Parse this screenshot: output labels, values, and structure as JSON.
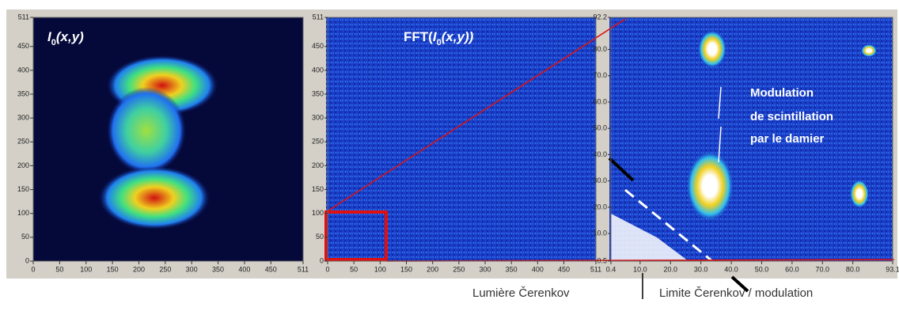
{
  "chart_data": [
    {
      "type": "heatmap",
      "title_parts": [
        {
          "text": "I",
          "style": "italic"
        },
        {
          "text": "0",
          "style": "sub"
        },
        {
          "text": "(x,y)",
          "style": "italic"
        }
      ],
      "xlim": [
        0,
        511
      ],
      "ylim": [
        0,
        511
      ],
      "xticks": [
        0,
        50,
        100,
        150,
        200,
        250,
        300,
        350,
        400,
        450,
        511
      ],
      "yticks": [
        0,
        50,
        100,
        150,
        200,
        250,
        300,
        350,
        400,
        450,
        511
      ]
    },
    {
      "type": "heatmap",
      "title_parts": [
        {
          "text": "FFT(",
          "style": "normal"
        },
        {
          "text": "I",
          "style": "italic"
        },
        {
          "text": "0",
          "style": "sub"
        },
        {
          "text": "(x,y))",
          "style": "italic"
        }
      ],
      "xlim": [
        0,
        511
      ],
      "ylim": [
        0,
        511
      ],
      "xticks": [
        0,
        50,
        100,
        150,
        200,
        250,
        300,
        350,
        400,
        450,
        511
      ],
      "yticks": [
        0,
        50,
        100,
        150,
        200,
        250,
        300,
        350,
        400,
        450,
        511
      ]
    },
    {
      "type": "heatmap",
      "xlim": [
        0.4,
        93.1
      ],
      "ylim": [
        -0.5,
        92.2
      ],
      "xticks": [
        {
          "value": 0.4,
          "label": "0.4"
        },
        {
          "value": 10,
          "label": "10.0"
        },
        {
          "value": 20,
          "label": "20.0"
        },
        {
          "value": 30,
          "label": "30.0"
        },
        {
          "value": 40,
          "label": "40.0"
        },
        {
          "value": 50,
          "label": "50.0"
        },
        {
          "value": 60,
          "label": "60.0"
        },
        {
          "value": 70,
          "label": "70.0"
        },
        {
          "value": 80,
          "label": "80.0"
        },
        {
          "value": 93.1,
          "label": "93.1"
        }
      ],
      "yticks": [
        {
          "value": -0.5,
          "label": "-0.5"
        },
        {
          "value": 10,
          "label": "10.0"
        },
        {
          "value": 20,
          "label": "20.0"
        },
        {
          "value": 30,
          "label": "30.0"
        },
        {
          "value": 40,
          "label": "40.0"
        },
        {
          "value": 50,
          "label": "50.0"
        },
        {
          "value": 60,
          "label": "60.0"
        },
        {
          "value": 70,
          "label": "70.0"
        },
        {
          "value": 80,
          "label": "80.0"
        },
        {
          "value": 92.2,
          "label": "92.2"
        }
      ],
      "annotations": [
        "Modulation",
        "de scintillation",
        "par le damier"
      ]
    }
  ],
  "captions": [
    "Lumière Čerenkov",
    "Limite Čerenkov / modulation"
  ]
}
